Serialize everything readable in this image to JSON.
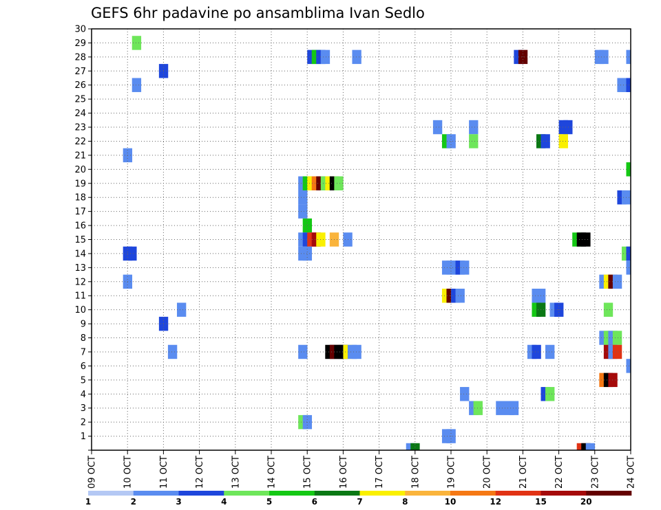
{
  "chart_data": {
    "type": "heatmap",
    "title": "GEFS 6hr padavine po ansamblima Ivan Sedlo",
    "y_ticks": [
      "1",
      "2",
      "3",
      "4",
      "5",
      "6",
      "7",
      "8",
      "9",
      "10",
      "11",
      "12",
      "13",
      "14",
      "15",
      "16",
      "17",
      "18",
      "19",
      "20",
      "21",
      "22",
      "23",
      "24",
      "25",
      "26",
      "27",
      "28",
      "29",
      "30"
    ],
    "x_ticks": [
      "09 OCT",
      "10 OCT",
      "11 OCT",
      "12 OCT",
      "13 OCT",
      "14 OCT",
      "15 OCT",
      "16 OCT",
      "17 OCT",
      "18 OCT",
      "19 OCT",
      "20 OCT",
      "21 OCT",
      "22 OCT",
      "23 OCT",
      "24 OCT"
    ],
    "x_range_days": [
      9,
      24
    ],
    "y_range": [
      0,
      30
    ],
    "legend": {
      "labels": [
        "1",
        "2",
        "3",
        "4",
        "5",
        "6",
        "7",
        "8",
        "10",
        "12",
        "15",
        "20"
      ],
      "colors": [
        "#b4c8f4",
        "#5a8cf0",
        "#1e46dc",
        "#6ee65a",
        "#14c814",
        "#0a7814",
        "#faf000",
        "#fab43c",
        "#f57814",
        "#e13214",
        "#a50a0a",
        "#640000"
      ]
    },
    "cells": [
      [
        10.125,
        29,
        3
      ],
      [
        15,
        28,
        2
      ],
      [
        15.125,
        28,
        4
      ],
      [
        15.25,
        28,
        2
      ],
      [
        15.375,
        28,
        1
      ],
      [
        16.25,
        28,
        1
      ],
      [
        20.75,
        28,
        2
      ],
      [
        20.875,
        28,
        11
      ],
      [
        23,
        28,
        1
      ],
      [
        23.125,
        28,
        1
      ],
      [
        23.875,
        28,
        1
      ],
      [
        10.875,
        27,
        2
      ],
      [
        10.125,
        26,
        1
      ],
      [
        23.625,
        26,
        1
      ],
      [
        23.75,
        26,
        1
      ],
      [
        23.875,
        26,
        2
      ],
      [
        18.5,
        23,
        1
      ],
      [
        19.5,
        23,
        1
      ],
      [
        22,
        23,
        2
      ],
      [
        22.125,
        23,
        2
      ],
      [
        18.75,
        22,
        4
      ],
      [
        18.875,
        22,
        1
      ],
      [
        19.5,
        22,
        3
      ],
      [
        21.375,
        22,
        5
      ],
      [
        21.5,
        22,
        2
      ],
      [
        22,
        22,
        6
      ],
      [
        9.875,
        21,
        1
      ],
      [
        23.875,
        20,
        4
      ],
      [
        14.75,
        19,
        1
      ],
      [
        14.875,
        19,
        4
      ],
      [
        15,
        19,
        6
      ],
      [
        15.125,
        19,
        8
      ],
      [
        15.25,
        19,
        11
      ],
      [
        15.375,
        19,
        3
      ],
      [
        15.5,
        19,
        6
      ],
      [
        15.625,
        19,
        12
      ],
      [
        15.75,
        19,
        3
      ],
      [
        14.75,
        18,
        1
      ],
      [
        23.625,
        18,
        2
      ],
      [
        23.75,
        18,
        1
      ],
      [
        14.75,
        17,
        1
      ],
      [
        14.875,
        16,
        4
      ],
      [
        14.75,
        15,
        1
      ],
      [
        14.875,
        15,
        2
      ],
      [
        15,
        15,
        9
      ],
      [
        15.125,
        15,
        10
      ],
      [
        15.25,
        15,
        6
      ],
      [
        15.625,
        15,
        7
      ],
      [
        16,
        15,
        1
      ],
      [
        22.375,
        15,
        4
      ],
      [
        22.5,
        15,
        12
      ],
      [
        22.625,
        15,
        12
      ],
      [
        9.875,
        14,
        2
      ],
      [
        10,
        14,
        2
      ],
      [
        14.75,
        14,
        1
      ],
      [
        14.875,
        14,
        1
      ],
      [
        23.75,
        14,
        3
      ],
      [
        23.875,
        14,
        2
      ],
      [
        18.75,
        13,
        1
      ],
      [
        18.875,
        13,
        1
      ],
      [
        19,
        13,
        1
      ],
      [
        19.125,
        13,
        2
      ],
      [
        19.25,
        13,
        1
      ],
      [
        23.875,
        13,
        1
      ],
      [
        9.875,
        12,
        1
      ],
      [
        23.125,
        12,
        1
      ],
      [
        23.25,
        12,
        6
      ],
      [
        23.375,
        12,
        11
      ],
      [
        23.5,
        12,
        1
      ],
      [
        18.75,
        11,
        6
      ],
      [
        18.875,
        11,
        11
      ],
      [
        19,
        11,
        2
      ],
      [
        19.125,
        11,
        1
      ],
      [
        21.25,
        11,
        1
      ],
      [
        21.375,
        11,
        1
      ],
      [
        11.375,
        10,
        1
      ],
      [
        21.25,
        10,
        4
      ],
      [
        21.375,
        10,
        5
      ],
      [
        21.75,
        10,
        1
      ],
      [
        21.875,
        10,
        2
      ],
      [
        23.25,
        10,
        3
      ],
      [
        10.875,
        9,
        2
      ],
      [
        23.125,
        8,
        1
      ],
      [
        23.25,
        8,
        3
      ],
      [
        23.375,
        8,
        1
      ],
      [
        23.5,
        8,
        3
      ],
      [
        11.125,
        7,
        1
      ],
      [
        14.75,
        7,
        1
      ],
      [
        15.5,
        7,
        12
      ],
      [
        15.625,
        7,
        11
      ],
      [
        15.75,
        7,
        13
      ],
      [
        15.875,
        7,
        13
      ],
      [
        16,
        7,
        6
      ],
      [
        16.125,
        7,
        1
      ],
      [
        16.25,
        7,
        1
      ],
      [
        21.125,
        7,
        1
      ],
      [
        21.25,
        7,
        2
      ],
      [
        21.625,
        7,
        1
      ],
      [
        23.25,
        7,
        10
      ],
      [
        23.375,
        7,
        1
      ],
      [
        23.5,
        7,
        9
      ],
      [
        23.875,
        6,
        1
      ],
      [
        23.125,
        5,
        8
      ],
      [
        23.25,
        5,
        12
      ],
      [
        23.375,
        5,
        10
      ],
      [
        19.25,
        4,
        1
      ],
      [
        21.5,
        4,
        2
      ],
      [
        21.625,
        4,
        3
      ],
      [
        19.5,
        3,
        1
      ],
      [
        19.625,
        3,
        3
      ],
      [
        20.25,
        3,
        1
      ],
      [
        20.5,
        3,
        1
      ],
      [
        20.625,
        3,
        1
      ],
      [
        14.75,
        2,
        3
      ],
      [
        14.875,
        2,
        1
      ],
      [
        18.75,
        1,
        1
      ],
      [
        18.875,
        1,
        1
      ],
      [
        17.75,
        0,
        1
      ],
      [
        17.875,
        0,
        5
      ],
      [
        22.5,
        0,
        9
      ],
      [
        22.625,
        0,
        13
      ],
      [
        22.75,
        0,
        1
      ]
    ]
  }
}
